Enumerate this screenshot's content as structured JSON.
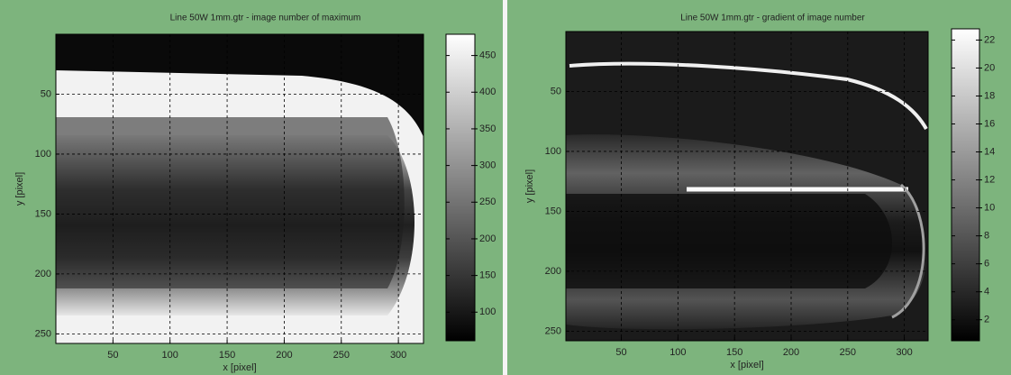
{
  "chart_data": [
    {
      "type": "heatmap",
      "title": "Line 50W 1mm.gtr - image number of maximum",
      "xlabel": "x [pixel]",
      "ylabel": "y [pixel]",
      "xlim": [
        0,
        322
      ],
      "ylim": [
        0,
        258
      ],
      "y_inverted": true,
      "xticks": [
        50,
        100,
        150,
        200,
        250,
        300
      ],
      "yticks": [
        50,
        100,
        150,
        200,
        250
      ],
      "grid": true,
      "colormap": "gray",
      "clim": [
        61,
        479
      ],
      "cticks": [
        100,
        150,
        200,
        250,
        300,
        350,
        400,
        450
      ]
    },
    {
      "type": "heatmap",
      "title": "Line 50W 1mm.gtr - gradient of image number",
      "xlabel": "x [pixel]",
      "ylabel": "y [pixel]",
      "xlim": [
        1,
        321
      ],
      "ylim": [
        0,
        258
      ],
      "y_inverted": true,
      "xticks": [
        50,
        100,
        150,
        200,
        250,
        300
      ],
      "yticks": [
        50,
        100,
        150,
        200,
        250
      ],
      "grid": true,
      "colormap": "gray",
      "clim": [
        0.5,
        22.8
      ],
      "cticks": [
        2,
        4,
        6,
        8,
        10,
        12,
        14,
        16,
        18,
        20,
        22
      ]
    }
  ]
}
